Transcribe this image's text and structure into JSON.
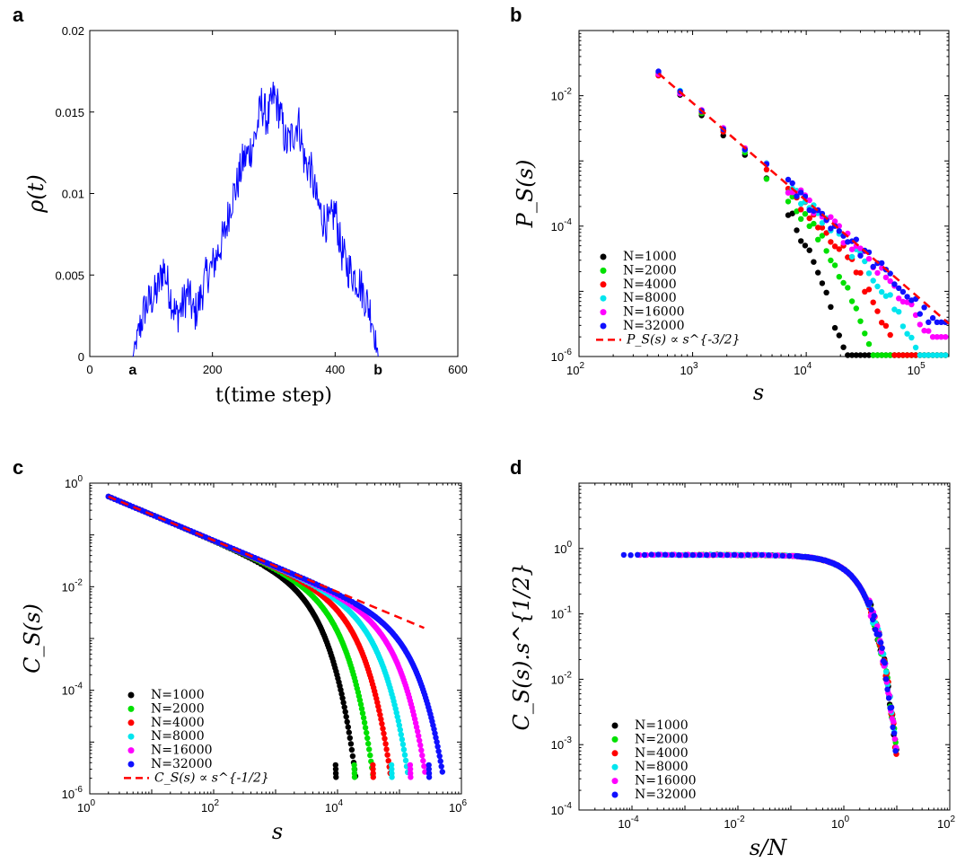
{
  "colors": {
    "N=1000": "#000000",
    "N=2000": "#00e000",
    "N=4000": "#ff0000",
    "N=8000": "#00e5ee",
    "N=16000": "#ff00ff",
    "N=32000": "#1010ff",
    "fit": "#ff0000",
    "trace": "#0000ff"
  },
  "chart_data": [
    {
      "panel": "a",
      "type": "line",
      "xlabel": "t(time step)",
      "ylabel": "ρ(t)",
      "xlim": [
        0,
        600
      ],
      "ylim": [
        0,
        0.02
      ],
      "xticks": [
        "0",
        "200",
        "400",
        "600"
      ],
      "yticks": [
        "0",
        "0.005",
        "0.01",
        "0.015",
        "0.02"
      ],
      "markers": [
        {
          "x": 70,
          "label": "a"
        },
        {
          "x": 470,
          "label": "b"
        }
      ],
      "series": [
        {
          "x": [
            70,
            80,
            90,
            100,
            110,
            120,
            130,
            140,
            150,
            160,
            170,
            180,
            190,
            200,
            210,
            220,
            230,
            240,
            250,
            260,
            270,
            280,
            290,
            300,
            310,
            320,
            330,
            340,
            350,
            360,
            370,
            380,
            390,
            400,
            410,
            420,
            430,
            440,
            450,
            460,
            470
          ],
          "y": [
            0,
            0.0015,
            0.003,
            0.0035,
            0.004,
            0.0055,
            0.004,
            0.0025,
            0.003,
            0.004,
            0.0025,
            0.0035,
            0.005,
            0.0055,
            0.0065,
            0.0075,
            0.0095,
            0.0105,
            0.012,
            0.0125,
            0.0135,
            0.0155,
            0.0145,
            0.016,
            0.015,
            0.013,
            0.0135,
            0.0145,
            0.012,
            0.0115,
            0.0095,
            0.0085,
            0.008,
            0.009,
            0.0065,
            0.0055,
            0.005,
            0.0045,
            0.0035,
            0.0025,
            0
          ]
        }
      ]
    },
    {
      "panel": "b",
      "type": "scatter",
      "xlabel": "s",
      "ylabel": "P_S(s)",
      "xscale": "log",
      "yscale": "log",
      "xlim": [
        100,
        180000
      ],
      "ylim": [
        1e-06,
        0.1
      ],
      "xticks": [
        {
          "base": "10",
          "exp": "2"
        },
        {
          "base": "10",
          "exp": "3"
        },
        {
          "base": "10",
          "exp": "4"
        },
        {
          "base": "10",
          "exp": "5"
        }
      ],
      "yticks": [
        {
          "base": "10",
          "exp": "-6"
        },
        {
          "base": "10",
          "exp": "-4"
        },
        {
          "base": "10",
          "exp": "-2"
        }
      ],
      "legend_position": "bottom-left",
      "series": [
        {
          "name": "N=1000",
          "cutoff": 7000
        },
        {
          "name": "N=2000",
          "cutoff": 14000
        },
        {
          "name": "N=4000",
          "cutoff": 28000
        },
        {
          "name": "N=8000",
          "cutoff": 56000
        },
        {
          "name": "N=16000",
          "cutoff": 112000
        },
        {
          "name": "N=32000",
          "cutoff": 224000
        }
      ],
      "fit": {
        "name": "P_S(s) ∝ s^{-3/2}",
        "exponent": -1.5,
        "x": [
          500,
          180000
        ],
        "y": [
          0.022,
          3.2e-06
        ]
      }
    },
    {
      "panel": "c",
      "type": "scatter",
      "xlabel": "s",
      "ylabel": "C_S(s)",
      "xscale": "log",
      "yscale": "log",
      "xlim": [
        1,
        1000000
      ],
      "ylim": [
        1e-06,
        1
      ],
      "xticks": [
        {
          "base": "10",
          "exp": "0"
        },
        {
          "base": "10",
          "exp": "2"
        },
        {
          "base": "10",
          "exp": "4"
        },
        {
          "base": "10",
          "exp": "6"
        }
      ],
      "yticks": [
        {
          "base": "10",
          "exp": "-6"
        },
        {
          "base": "10",
          "exp": "-4"
        },
        {
          "base": "10",
          "exp": "-2"
        },
        {
          "base": "10",
          "exp": "0"
        }
      ],
      "legend_position": "bottom-left",
      "series": [
        {
          "name": "N=1000",
          "cutoff": 3000
        },
        {
          "name": "N=2000",
          "cutoff": 6000
        },
        {
          "name": "N=4000",
          "cutoff": 12000
        },
        {
          "name": "N=8000",
          "cutoff": 24000
        },
        {
          "name": "N=16000",
          "cutoff": 48000
        },
        {
          "name": "N=32000",
          "cutoff": 96000
        }
      ],
      "fit": {
        "name": "C_S(s) ∝ s^{-1/2}",
        "exponent": -0.5,
        "x": [
          2,
          250000
        ],
        "y": [
          0.55,
          0.0016
        ]
      }
    },
    {
      "panel": "d",
      "type": "scatter",
      "xlabel": "s/N",
      "ylabel": "C_S(s).s^{1/2}",
      "xscale": "log",
      "yscale": "log",
      "xlim": [
        1e-05,
        100
      ],
      "ylim": [
        0.0001,
        10
      ],
      "xticks": [
        {
          "base": "10",
          "exp": "-4"
        },
        {
          "base": "10",
          "exp": "-2"
        },
        {
          "base": "10",
          "exp": "0"
        },
        {
          "base": "10",
          "exp": "2"
        }
      ],
      "yticks": [
        {
          "base": "10",
          "exp": "-4"
        },
        {
          "base": "10",
          "exp": "-3"
        },
        {
          "base": "10",
          "exp": "-2"
        },
        {
          "base": "10",
          "exp": "-1"
        },
        {
          "base": "10",
          "exp": "0"
        }
      ],
      "legend_position": "bottom-left",
      "series": [
        {
          "name": "N=1000"
        },
        {
          "name": "N=2000"
        },
        {
          "name": "N=4000"
        },
        {
          "name": "N=8000"
        },
        {
          "name": "N=16000"
        },
        {
          "name": "N=32000"
        }
      ],
      "collapse": {
        "plateau": 0.8,
        "x_start": 7e-05,
        "x_end": 10
      }
    }
  ]
}
